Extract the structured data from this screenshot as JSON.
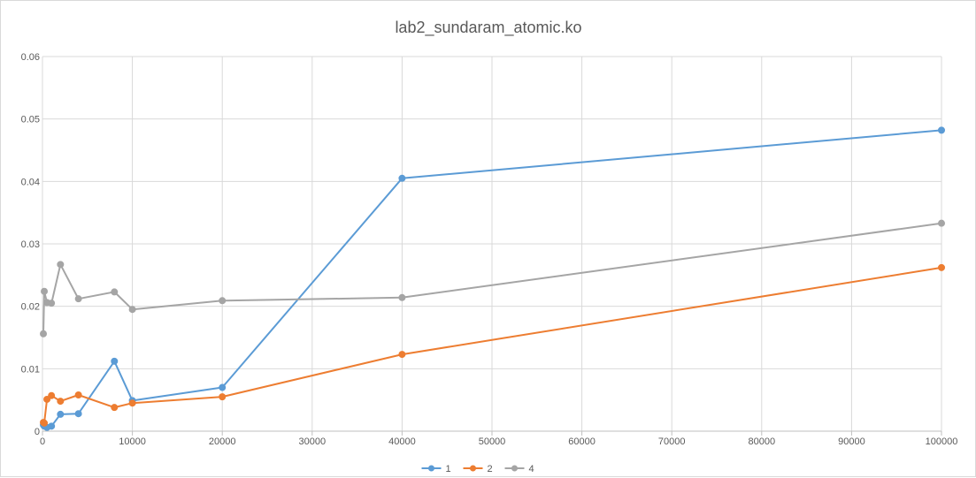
{
  "chart_data": {
    "type": "line",
    "title": "lab2_sundaram_atomic.ko",
    "xlabel": "",
    "ylabel": "",
    "xlim": [
      0,
      100000
    ],
    "ylim": [
      0,
      0.06
    ],
    "x_ticks": [
      "0",
      "10000",
      "20000",
      "30000",
      "40000",
      "50000",
      "60000",
      "70000",
      "80000",
      "90000",
      "100000"
    ],
    "y_ticks": [
      "0",
      "0.01",
      "0.02",
      "0.03",
      "0.04",
      "0.05",
      "0.06"
    ],
    "grid": true,
    "legend_position": "bottom",
    "series": [
      {
        "name": "1",
        "color": "#5b9bd5",
        "points": [
          [
            100,
            0.001
          ],
          [
            200,
            0.0008
          ],
          [
            500,
            0.0006
          ],
          [
            1000,
            0.0008
          ],
          [
            2000,
            0.0027
          ],
          [
            4000,
            0.0028
          ],
          [
            8000,
            0.0112
          ],
          [
            10000,
            0.0049
          ],
          [
            20000,
            0.007
          ],
          [
            40000,
            0.0405
          ],
          [
            100000,
            0.0482
          ]
        ]
      },
      {
        "name": "2",
        "color": "#ed7d31",
        "points": [
          [
            100,
            0.0014
          ],
          [
            200,
            0.0013
          ],
          [
            500,
            0.0051
          ],
          [
            1000,
            0.0057
          ],
          [
            2000,
            0.0048
          ],
          [
            4000,
            0.0058
          ],
          [
            8000,
            0.0038
          ],
          [
            10000,
            0.0045
          ],
          [
            20000,
            0.0055
          ],
          [
            40000,
            0.0123
          ],
          [
            100000,
            0.0262
          ]
        ]
      },
      {
        "name": "4",
        "color": "#a5a5a5",
        "points": [
          [
            100,
            0.0156
          ],
          [
            200,
            0.0224
          ],
          [
            500,
            0.0206
          ],
          [
            1000,
            0.0205
          ],
          [
            2000,
            0.0267
          ],
          [
            4000,
            0.0212
          ],
          [
            8000,
            0.0223
          ],
          [
            10000,
            0.0195
          ],
          [
            20000,
            0.0209
          ],
          [
            40000,
            0.0214
          ],
          [
            100000,
            0.0333
          ]
        ]
      }
    ]
  }
}
